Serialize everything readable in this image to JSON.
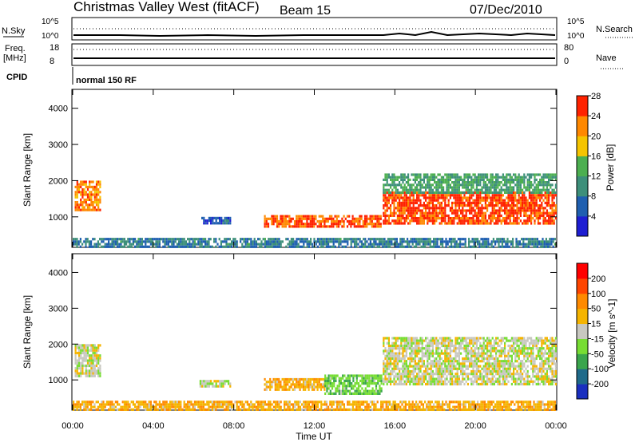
{
  "header": {
    "station": "Christmas Valley West (fitACF)",
    "beam": "Beam 15",
    "date": "07/Dec/2010"
  },
  "status_panels": {
    "nsky_label": "N.Sky",
    "nsearch_label": "N.Search",
    "freq_label_1": "Freq.",
    "freq_label_2": "[MHz]",
    "nave_label": "Nave",
    "cpid_label": "CPID",
    "cpid_value": "normal 150 RF",
    "noise_ticks": [
      "10^5",
      "10^0"
    ],
    "freq_ticks": [
      "18",
      "8"
    ],
    "nave_ticks": [
      "80",
      "0"
    ]
  },
  "chart_data": [
    {
      "type": "heatmap",
      "title": "",
      "xlabel": "Time UT",
      "ylabel": "Slant Range [km]",
      "x_ticks": [
        "00:00",
        "04:00",
        "08:00",
        "12:00",
        "16:00",
        "20:00",
        "00:00"
      ],
      "xlim_hours": [
        0,
        24
      ],
      "y_ticks": [
        1000,
        2000,
        3000,
        4000
      ],
      "ylim": [
        180,
        4500
      ],
      "colorbar": {
        "label": "Power [dB]",
        "ticks": [
          4,
          8,
          12,
          16,
          20,
          24,
          28
        ],
        "range": [
          0,
          30
        ],
        "colors": [
          "#1e1ed2",
          "#1f5fb0",
          "#3d8f7a",
          "#4caf50",
          "#f5c400",
          "#ff8800",
          "#ff2200"
        ]
      },
      "regions": [
        {
          "t0": 0.1,
          "t1": 1.4,
          "r0": 1200,
          "r1": 2000,
          "value": 24
        },
        {
          "t0": 6.3,
          "t1": 7.8,
          "r0": 800,
          "r1": 1000,
          "value": 6
        },
        {
          "t0": 9.5,
          "t1": 15.3,
          "r0": 700,
          "r1": 1050,
          "value": 26
        },
        {
          "t0": 15.4,
          "t1": 24.0,
          "r0": 850,
          "r1": 1700,
          "value": 27
        },
        {
          "t0": 15.4,
          "t1": 24.0,
          "r0": 1700,
          "r1": 2200,
          "value": 13
        },
        {
          "t0": 0.0,
          "t1": 24.0,
          "r0": 200,
          "r1": 420,
          "value": 9
        }
      ]
    },
    {
      "type": "heatmap",
      "title": "",
      "xlabel": "Time UT",
      "ylabel": "Slant Range [km]",
      "x_ticks": [
        "00:00",
        "04:00",
        "08:00",
        "12:00",
        "16:00",
        "20:00",
        "00:00"
      ],
      "xlim_hours": [
        0,
        24
      ],
      "y_ticks": [
        1000,
        2000,
        3000,
        4000
      ],
      "ylim": [
        180,
        4500
      ],
      "colorbar": {
        "label": "Velocity [m s^-1]",
        "ticks": [
          "200",
          "100",
          "50",
          "15",
          "-15",
          "-50",
          "-100",
          "-200"
        ],
        "colors": [
          "#1a2fbf",
          "#1f6a8a",
          "#3aa54c",
          "#77dd33",
          "#c8c8c0",
          "#f5b400",
          "#ff8a00",
          "#ff4500",
          "#ff0000"
        ]
      },
      "regions": [
        {
          "t0": 0.1,
          "t1": 1.4,
          "r0": 1100,
          "r1": 2000,
          "value": 0
        },
        {
          "t0": 6.3,
          "t1": 7.8,
          "r0": 800,
          "r1": 1000,
          "value": 0
        },
        {
          "t0": 9.5,
          "t1": 12.5,
          "r0": 700,
          "r1": 1050,
          "value": -40
        },
        {
          "t0": 12.5,
          "t1": 15.3,
          "r0": 650,
          "r1": 1150,
          "value": 40
        },
        {
          "t0": 15.4,
          "t1": 24.0,
          "r0": 850,
          "r1": 2200,
          "value": 0
        },
        {
          "t0": 0.0,
          "t1": 24.0,
          "r0": 200,
          "r1": 420,
          "value": -40
        }
      ]
    }
  ]
}
